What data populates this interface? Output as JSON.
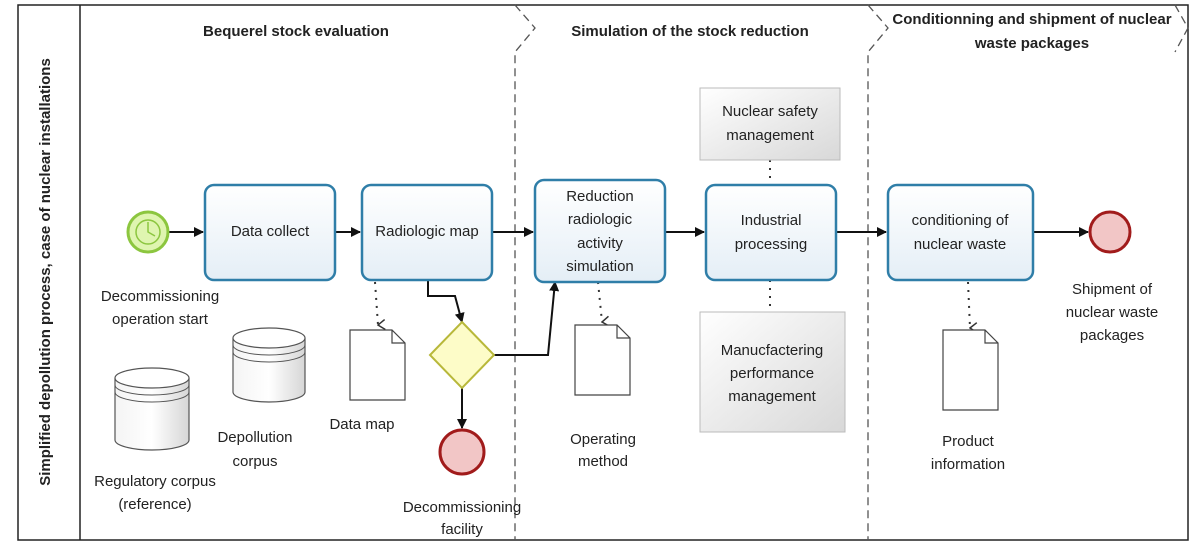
{
  "pool": {
    "label": "Simplified depollution process, case of nuclear installations"
  },
  "phases": [
    {
      "title": [
        "Bequerel stock evaluation"
      ]
    },
    {
      "title": [
        "Simulation of the stock reduction"
      ]
    },
    {
      "title": [
        "Conditionning and shipment of nuclear",
        "waste packages"
      ]
    }
  ],
  "nodes": [
    {
      "label": [
        "Decommissioning",
        "operation start"
      ]
    },
    {
      "label": [
        "Data collect"
      ]
    },
    {
      "label": [
        "Radiologic map"
      ]
    },
    {
      "label": [
        "Decommissioning",
        "facility"
      ]
    },
    {
      "label": [
        "Reduction",
        "radiologic",
        "activity",
        "simulation"
      ]
    },
    {
      "label": [
        "Industrial",
        "processing"
      ]
    },
    {
      "label": [
        "conditioning of",
        "nuclear waste"
      ]
    },
    {
      "label": [
        "Shipment of",
        "nuclear waste",
        "packages"
      ]
    },
    {
      "label": [
        "Nuclear safety",
        "management"
      ]
    },
    {
      "label": [
        "Manucfactering",
        "performance",
        "management"
      ]
    },
    {
      "label": [
        "Data map"
      ]
    },
    {
      "label": [
        "Operating",
        "method"
      ]
    },
    {
      "label": [
        "Product",
        "information"
      ]
    },
    {
      "label": [
        "Depollution",
        "corpus"
      ]
    },
    {
      "label": [
        "Regulatory corpus",
        "(reference)"
      ]
    }
  ]
}
